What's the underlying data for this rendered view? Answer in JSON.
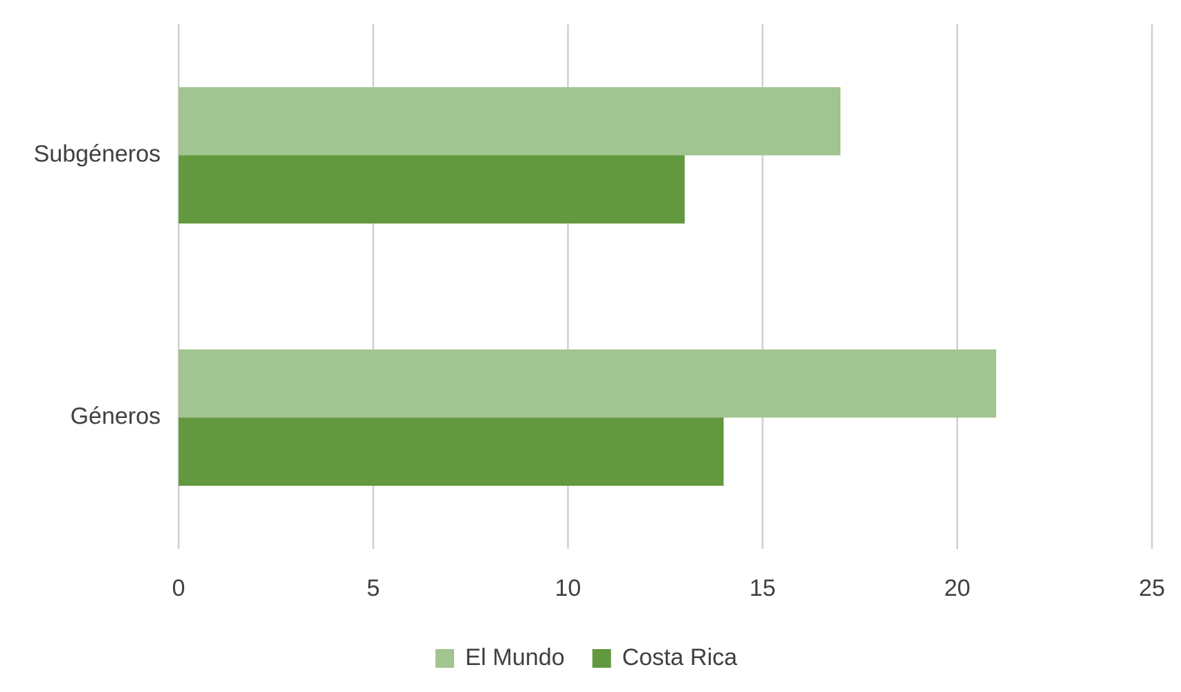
{
  "chart_data": {
    "type": "hbar",
    "categories": [
      "Subgéneros",
      "Géneros"
    ],
    "series": [
      {
        "name": "El Mundo",
        "color": "#a2c490",
        "values": [
          17,
          21
        ]
      },
      {
        "name": "Costa Rica",
        "color": "#62993e",
        "values": [
          13,
          14
        ]
      }
    ],
    "xlim": [
      0,
      25
    ],
    "xticks": [
      0,
      5,
      10,
      15,
      20,
      25
    ],
    "grid": true,
    "legend": "bottom"
  }
}
